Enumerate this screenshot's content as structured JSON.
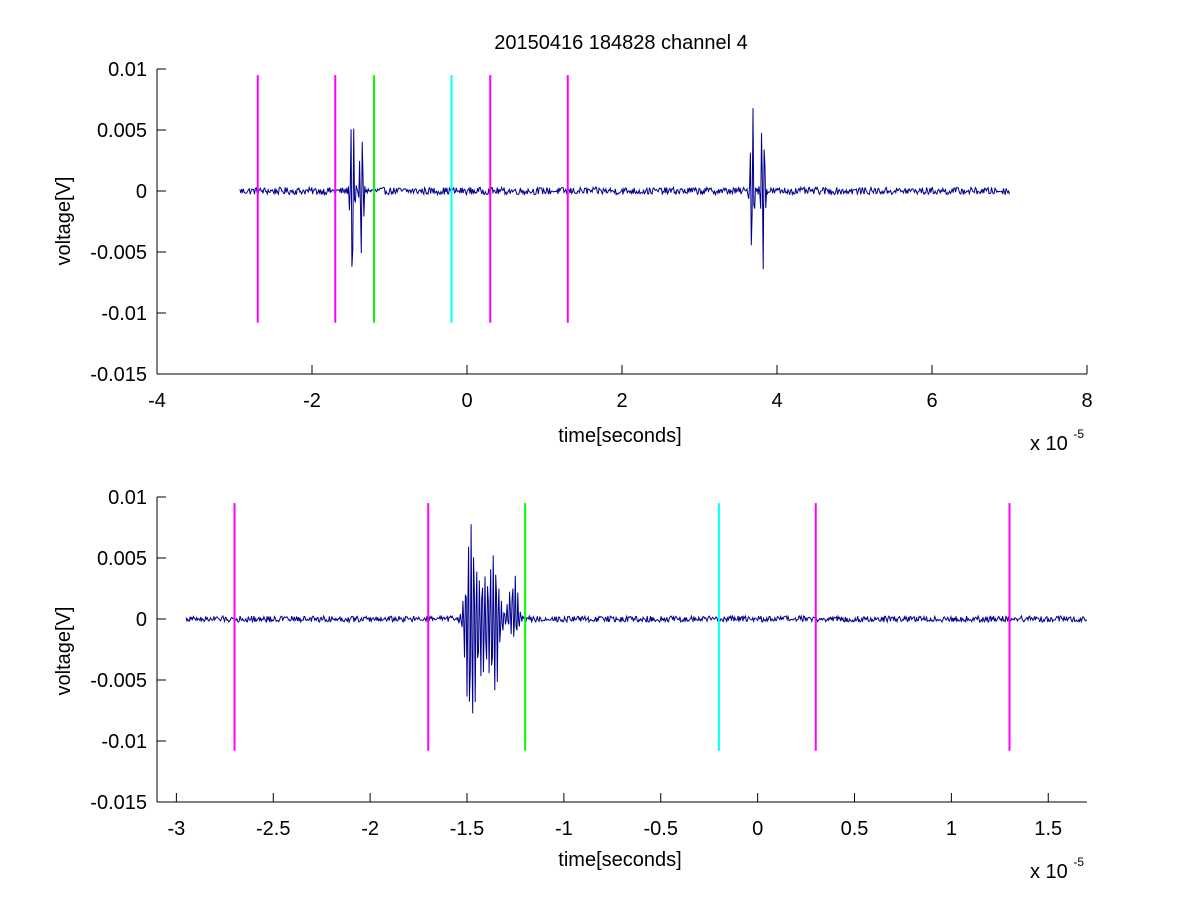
{
  "figure": {
    "title": "20150416 184828 channel 4"
  },
  "colors": {
    "signal": "#00008B",
    "magenta": "#FF00FF",
    "green": "#00FF00",
    "cyan": "#00FFFF",
    "axes": "#000000"
  },
  "chart_data": [
    {
      "type": "line",
      "title": "20150416 184828 channel 4",
      "xlabel": "time[seconds]",
      "ylabel": "voltage[V]",
      "x_multiplier_label": "x 10",
      "x_multiplier_exp": "-5",
      "xlim": [
        -4e-05,
        8e-05
      ],
      "ylim": [
        -0.015,
        0.01
      ],
      "xticks": [
        -4e-05,
        -2e-05,
        0,
        2e-05,
        4e-05,
        6e-05,
        8e-05
      ],
      "xtick_labels": [
        "-4",
        "-2",
        "0",
        "2",
        "4",
        "6",
        "8"
      ],
      "yticks": [
        -0.015,
        -0.01,
        -0.005,
        0,
        0.005,
        0.01
      ],
      "ytick_labels": [
        "-0.015",
        "-0.01",
        "-0.005",
        "0",
        "0.005",
        "0.01"
      ],
      "grid": false,
      "signal": {
        "t_start": -2.93e-05,
        "t_end": 7e-05,
        "noise_amplitude": 0.0003,
        "bursts": [
          {
            "t": -1.48e-05,
            "min": -0.0097,
            "max": 0.0075
          },
          {
            "t": -1.36e-05,
            "min": -0.0066,
            "max": 0.0055
          },
          {
            "t": 3.68e-05,
            "min": -0.0064,
            "max": 0.0078
          },
          {
            "t": 3.82e-05,
            "min": -0.0067,
            "max": 0.0085
          }
        ]
      },
      "markers": [
        {
          "x": -2.7e-05,
          "color": "magenta",
          "y_range": [
            -0.0108,
            0.0095
          ]
        },
        {
          "x": -1.7e-05,
          "color": "magenta",
          "y_range": [
            -0.0108,
            0.0095
          ]
        },
        {
          "x": -1.2e-05,
          "color": "green",
          "y_range": [
            -0.0108,
            0.0095
          ]
        },
        {
          "x": -2e-06,
          "color": "cyan",
          "y_range": [
            -0.0108,
            0.0095
          ]
        },
        {
          "x": 3e-06,
          "color": "magenta",
          "y_range": [
            -0.0108,
            0.0095
          ]
        },
        {
          "x": 1.3e-05,
          "color": "magenta",
          "y_range": [
            -0.0108,
            0.0095
          ]
        }
      ]
    },
    {
      "type": "line",
      "title": "",
      "xlabel": "time[seconds]",
      "ylabel": "voltage[V]",
      "x_multiplier_label": "x 10",
      "x_multiplier_exp": "-5",
      "xlim": [
        -3.1e-05,
        1.7e-05
      ],
      "ylim": [
        -0.015,
        0.01
      ],
      "xticks": [
        -3e-05,
        -2.5e-05,
        -2e-05,
        -1.5e-05,
        -1e-05,
        -5e-06,
        0,
        5e-06,
        1e-05,
        1.5e-05
      ],
      "xtick_labels": [
        "-3",
        "-2.5",
        "-2",
        "-1.5",
        "-1",
        "-0.5",
        "0",
        "0.5",
        "1",
        "1.5"
      ],
      "yticks": [
        -0.015,
        -0.01,
        -0.005,
        0,
        0.005,
        0.01
      ],
      "ytick_labels": [
        "-0.015",
        "-0.01",
        "-0.005",
        "0",
        "0.005",
        "0.01"
      ],
      "grid": false,
      "signal": {
        "t_start": -2.95e-05,
        "t_end": 1.7e-05,
        "noise_amplitude": 0.00025,
        "bursts": [
          {
            "t": -1.48e-05,
            "min": -0.0097,
            "max": 0.0075
          },
          {
            "t": -1.42e-05,
            "min": -0.0048,
            "max": 0.0033
          },
          {
            "t": -1.36e-05,
            "min": -0.0066,
            "max": 0.0055
          },
          {
            "t": -1.26e-05,
            "min": -0.0015,
            "max": 0.0038
          }
        ]
      },
      "markers": [
        {
          "x": -2.7e-05,
          "color": "magenta",
          "y_range": [
            -0.0108,
            0.0095
          ]
        },
        {
          "x": -1.7e-05,
          "color": "magenta",
          "y_range": [
            -0.0108,
            0.0095
          ]
        },
        {
          "x": -1.2e-05,
          "color": "green",
          "y_range": [
            -0.0108,
            0.0095
          ]
        },
        {
          "x": -2e-06,
          "color": "cyan",
          "y_range": [
            -0.0108,
            0.0095
          ]
        },
        {
          "x": 3e-06,
          "color": "magenta",
          "y_range": [
            -0.0108,
            0.0095
          ]
        },
        {
          "x": 1.3e-05,
          "color": "magenta",
          "y_range": [
            -0.0108,
            0.0095
          ]
        }
      ]
    }
  ]
}
